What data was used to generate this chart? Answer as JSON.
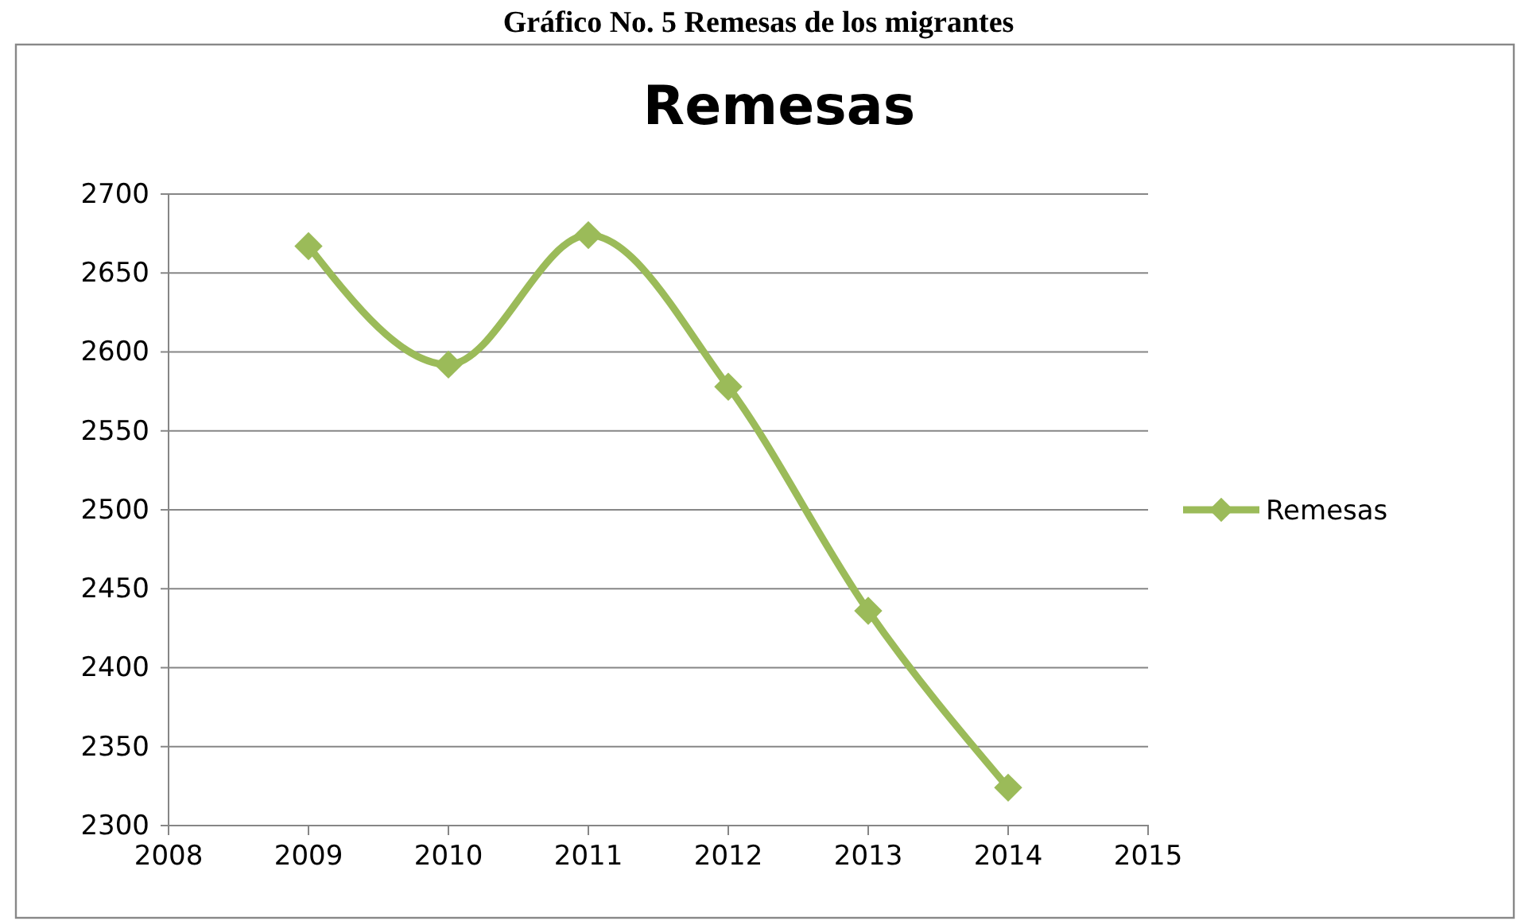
{
  "chart_data": {
    "type": "line",
    "title": "Gráfico No. 5 Remesas de los migrantes",
    "subtitle": "Remesas",
    "x": [
      2009,
      2010,
      2011,
      2012,
      2013,
      2014
    ],
    "series": [
      {
        "name": "Remesas",
        "color": "#9bbb59",
        "values": [
          2667,
          2592,
          2674,
          2578,
          2436,
          2324
        ]
      }
    ],
    "xlim": [
      2008,
      2015
    ],
    "xticks": [
      2008,
      2009,
      2010,
      2011,
      2012,
      2013,
      2014,
      2015
    ],
    "ylim": [
      2300,
      2700
    ],
    "yticks": [
      2300,
      2350,
      2400,
      2450,
      2500,
      2550,
      2600,
      2650,
      2700
    ],
    "grid": "y",
    "legend": "right",
    "marker": "diamond",
    "line_style": "solid"
  }
}
